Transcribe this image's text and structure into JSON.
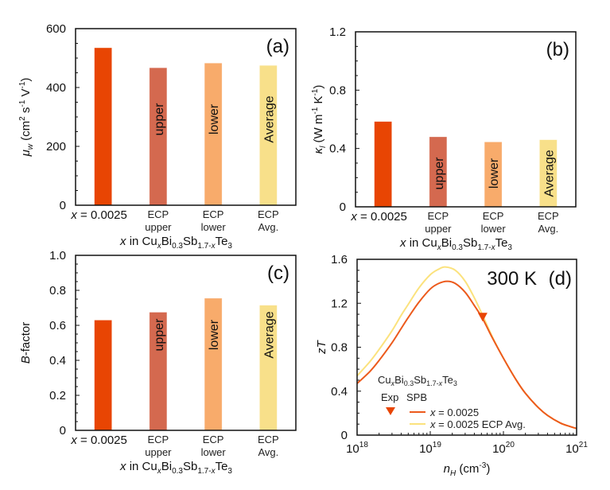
{
  "chart_data": [
    {
      "id": "a",
      "type": "bar",
      "panel_label": "(a)",
      "categories": [
        "x = 0.0025",
        "ECP upper",
        "ECP lower",
        "ECP Avg."
      ],
      "category_lines": [
        [
          "x = 0.0025"
        ],
        [
          "ECP",
          "upper"
        ],
        [
          "ECP",
          "lower"
        ],
        [
          "ECP",
          "Avg."
        ]
      ],
      "bar_texts": [
        "",
        "upper",
        "lower",
        "Average"
      ],
      "values": [
        535,
        467,
        483,
        475
      ],
      "colors": [
        "#e84503",
        "#d4694f",
        "#f8ab6b",
        "#f8e08a"
      ],
      "ylabel": "μw (cm² s⁻¹ V⁻¹)",
      "ylabel_parts": {
        "sym": "μ",
        "sub": "w",
        "unit": " (cm",
        "sup1": "2",
        "mid": " s",
        "sup2": "-1",
        "mid2": " V",
        "sup3": "-1",
        "end": ")"
      },
      "xlabel": "x in CuxBi0.3Sb1.7-xTe3",
      "ylim": [
        0,
        600
      ],
      "yticks": [
        0,
        200,
        400,
        600
      ],
      "ytick_labels": [
        "0",
        "200",
        "400",
        "600"
      ]
    },
    {
      "id": "b",
      "type": "bar",
      "panel_label": "(b)",
      "categories": [
        "x = 0.0025",
        "ECP upper",
        "ECP lower",
        "ECP Avg."
      ],
      "category_lines": [
        [
          "x = 0.0025"
        ],
        [
          "ECP",
          "upper"
        ],
        [
          "ECP",
          "lower"
        ],
        [
          "ECP",
          "Avg."
        ]
      ],
      "bar_texts": [
        "",
        "upper",
        "lower",
        "Average"
      ],
      "values": [
        0.585,
        0.48,
        0.445,
        0.46
      ],
      "colors": [
        "#e84503",
        "#d4694f",
        "#f8ab6b",
        "#f8e08a"
      ],
      "ylabel": "κl (W m⁻¹ K⁻¹)",
      "ylabel_parts": {
        "sym": "κ",
        "sub": "l",
        "unit": " (W m",
        "sup1": "-1",
        "mid": " K",
        "sup2": "-1",
        "end": ")"
      },
      "xlabel": "x in CuxBi0.3Sb1.7-xTe3",
      "ylim": [
        0,
        1.2
      ],
      "yticks": [
        0,
        0.4,
        0.8,
        1.2
      ],
      "ytick_labels": [
        "0",
        "0.4",
        "0.8",
        "1.2"
      ]
    },
    {
      "id": "c",
      "type": "bar",
      "panel_label": "(c)",
      "categories": [
        "x = 0.0025",
        "ECP upper",
        "ECP lower",
        "ECP Avg."
      ],
      "category_lines": [
        [
          "x = 0.0025"
        ],
        [
          "ECP",
          "upper"
        ],
        [
          "ECP",
          "lower"
        ],
        [
          "ECP",
          "Avg."
        ]
      ],
      "bar_texts": [
        "",
        "upper",
        "lower",
        "Average"
      ],
      "values": [
        0.63,
        0.675,
        0.755,
        0.715
      ],
      "colors": [
        "#e84503",
        "#d4694f",
        "#f8ab6b",
        "#f8e08a"
      ],
      "ylabel": "B-factor",
      "ylabel_parts": {
        "sym": "B",
        "rest": "-factor"
      },
      "xlabel": "x in CuxBi0.3Sb1.7-xTe3",
      "ylim": [
        0,
        1.0
      ],
      "yticks": [
        0,
        0.2,
        0.4,
        0.6,
        0.8,
        1.0
      ],
      "ytick_labels": [
        "0",
        "0.2",
        "0.4",
        "0.6",
        "0.8",
        "1.0"
      ]
    },
    {
      "id": "d",
      "type": "line",
      "panel_label": "(d)",
      "annotation": "300 K",
      "xscale": "log",
      "xlim": [
        1e+18,
        1e+21
      ],
      "ylim": [
        0,
        1.6
      ],
      "xticks": [
        1e+18,
        1e+19,
        1e+20,
        1e+21
      ],
      "xtick_labels": [
        {
          "base": "10",
          "exp": "18"
        },
        {
          "base": "10",
          "exp": "19"
        },
        {
          "base": "10",
          "exp": "20"
        },
        {
          "base": "10",
          "exp": "21"
        }
      ],
      "yticks": [
        0,
        0.4,
        0.8,
        1.2,
        1.6
      ],
      "ytick_labels": [
        "0",
        "0.4",
        "0.8",
        "1.2",
        "1.6"
      ],
      "xlabel": "nH (cm⁻³)",
      "xlabel_parts": {
        "sym": "n",
        "sub": "H",
        "unit": " (cm",
        "sup": "-3",
        "end": ")"
      },
      "ylabel": "zT",
      "legend": {
        "placement": "lower-left",
        "title": "CuxBi0.3Sb1.7-xTe3",
        "col_exp": "Exp",
        "col_spb": "SPB",
        "entries": [
          "x = 0.0025",
          "x = 0.0025 ECP Avg."
        ]
      },
      "series": [
        {
          "name": "x = 0.0025",
          "color": "#ec5a1c",
          "x": [
            1e+18,
            1.5e+18,
            2e+18,
            3e+18,
            4e+18,
            5e+18,
            7e+18,
            1e+19,
            1.3e+19,
            1.7e+19,
            2.2e+19,
            3e+19,
            4e+19,
            5.2e+19,
            7e+19,
            1e+20,
            1.5e+20,
            2e+20,
            3e+20,
            4e+20,
            6e+20,
            8e+20,
            1e+21
          ],
          "y": [
            0.47,
            0.58,
            0.68,
            0.84,
            0.97,
            1.07,
            1.21,
            1.33,
            1.38,
            1.4,
            1.38,
            1.3,
            1.18,
            1.06,
            0.89,
            0.7,
            0.5,
            0.38,
            0.25,
            0.18,
            0.11,
            0.08,
            0.06
          ]
        },
        {
          "name": "x = 0.0025 ECP Avg.",
          "color": "#fbe27d",
          "x": [
            1e+18,
            1.5e+18,
            2e+18,
            3e+18,
            4e+18,
            5e+18,
            7e+18,
            1e+19,
            1.3e+19,
            1.6e+19,
            2.2e+19,
            3e+19,
            4e+19,
            5.2e+19,
            7e+19,
            1e+20,
            1.5e+20,
            2e+20,
            3e+20,
            4e+20,
            6e+20,
            8e+20,
            1e+21
          ],
          "y": [
            0.54,
            0.67,
            0.78,
            0.95,
            1.09,
            1.19,
            1.34,
            1.46,
            1.51,
            1.53,
            1.5,
            1.4,
            1.25,
            1.09,
            0.9,
            0.7,
            0.5,
            0.38,
            0.25,
            0.18,
            0.11,
            0.08,
            0.06
          ]
        }
      ],
      "experimental_points": [
        {
          "name": "x = 0.0025",
          "x": 5.2e+19,
          "y": 1.07,
          "marker": "triangle-down",
          "color": "#e84503"
        }
      ]
    }
  ]
}
